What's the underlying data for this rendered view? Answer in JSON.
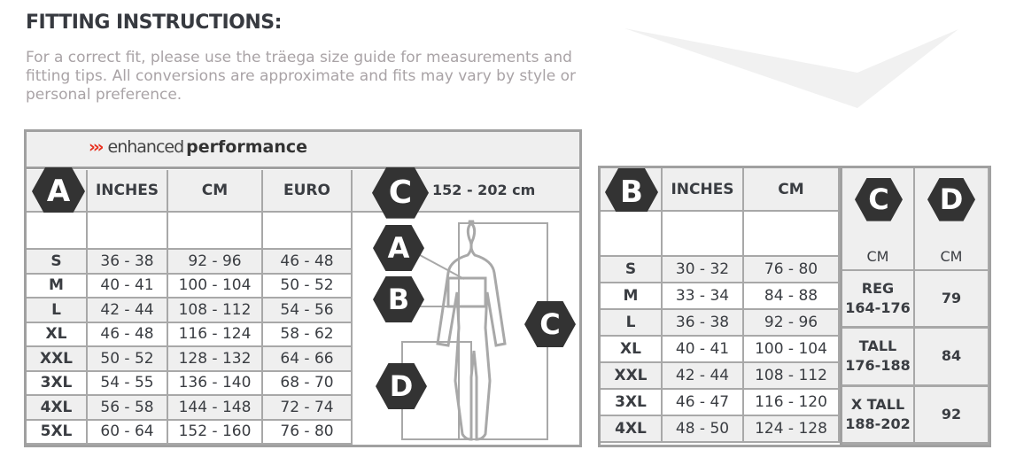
{
  "title": "FITTING INSTRUCTIONS:",
  "intro": "For a correct fit, please use the träega size guide for measurements and fitting tips. All conversions are approximate and fits may vary by style or personal preference.",
  "colors": {
    "accent": "#e8301f",
    "dark": "#333333",
    "border": "#a0a0a0",
    "row_shade": "#efefef"
  },
  "left_table": {
    "brand_arrows": "›››",
    "brand_light": "enhanced",
    "brand_bold": "performance",
    "badge": "A",
    "headers": [
      "INCHES",
      "CM",
      "EURO"
    ],
    "c_badge": "C",
    "height_range": "152 - 202 cm",
    "rows": [
      {
        "size": "S",
        "inches": "36 - 38",
        "cm": "92 - 96",
        "euro": "46 - 48"
      },
      {
        "size": "M",
        "inches": "40 - 41",
        "cm": "100 - 104",
        "euro": "50 - 52"
      },
      {
        "size": "L",
        "inches": "42 - 44",
        "cm": "108 - 112",
        "euro": "54 - 56"
      },
      {
        "size": "XL",
        "inches": "46 - 48",
        "cm": "116 - 124",
        "euro": "58 - 62"
      },
      {
        "size": "XXL",
        "inches": "50 - 52",
        "cm": "128 - 132",
        "euro": "64 - 66"
      },
      {
        "size": "3XL",
        "inches": "54 - 55",
        "cm": "136 - 140",
        "euro": "68 - 70"
      },
      {
        "size": "4XL",
        "inches": "56 - 58",
        "cm": "144 - 148",
        "euro": "72 - 74"
      },
      {
        "size": "5XL",
        "inches": "60 - 64",
        "cm": "152 - 160",
        "euro": "76 - 80"
      }
    ],
    "figure_badges": [
      "A",
      "B",
      "C",
      "D"
    ]
  },
  "right_table": {
    "badge": "B",
    "headers": [
      "INCHES",
      "CM"
    ],
    "c_badge": "C",
    "d_badge": "D",
    "c_unit": "CM",
    "d_unit": "CM",
    "rows": [
      {
        "size": "S",
        "inches": "30 - 32",
        "cm": "76 - 80"
      },
      {
        "size": "M",
        "inches": "33 - 34",
        "cm": "84 - 88"
      },
      {
        "size": "L",
        "inches": "36 - 38",
        "cm": "92 - 96"
      },
      {
        "size": "XL",
        "inches": "40 - 41",
        "cm": "100 - 104"
      },
      {
        "size": "XXL",
        "inches": "42 - 44",
        "cm": "108 - 112"
      },
      {
        "size": "3XL",
        "inches": "46 - 47",
        "cm": "116 - 120"
      },
      {
        "size": "4XL",
        "inches": "48 - 50",
        "cm": "124 - 128"
      }
    ],
    "lengths": [
      {
        "label": "REG",
        "range": "164-176",
        "value": "79"
      },
      {
        "label": "TALL",
        "range": "176-188",
        "value": "84"
      },
      {
        "label": "X TALL",
        "range": "188-202",
        "value": "92"
      }
    ]
  }
}
